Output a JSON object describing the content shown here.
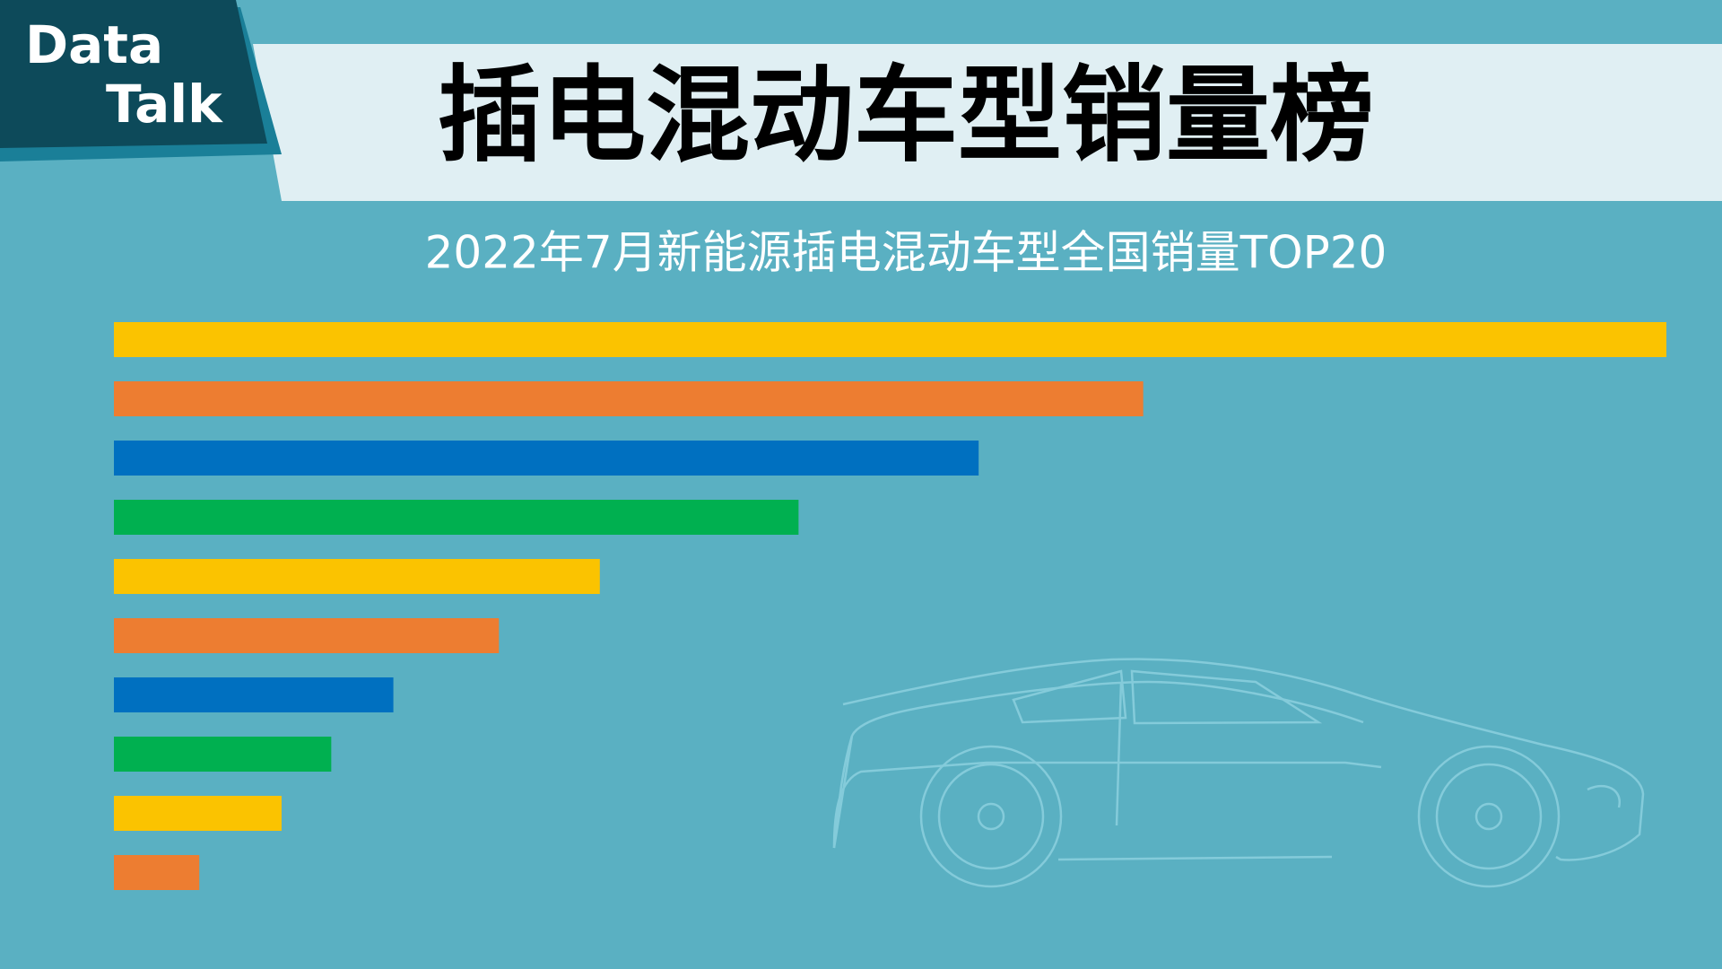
{
  "badge": {
    "line1": "Data",
    "line2": "Talk"
  },
  "chart_data": {
    "type": "bar",
    "orientation": "horizontal",
    "title": "插电混动车型销量榜",
    "subtitle": "2022年7月新能源插电混动车型全国销量TOP20",
    "values": [
      100,
      66.3,
      55.7,
      44.1,
      31.3,
      24.8,
      18.0,
      14.0,
      10.8,
      5.5
    ],
    "colors": [
      "#fbc300",
      "#ed7d31",
      "#0070c0",
      "#00b050",
      "#fbc300",
      "#ed7d31",
      "#0070c0",
      "#00b050",
      "#fbc300",
      "#ed7d31"
    ]
  }
}
